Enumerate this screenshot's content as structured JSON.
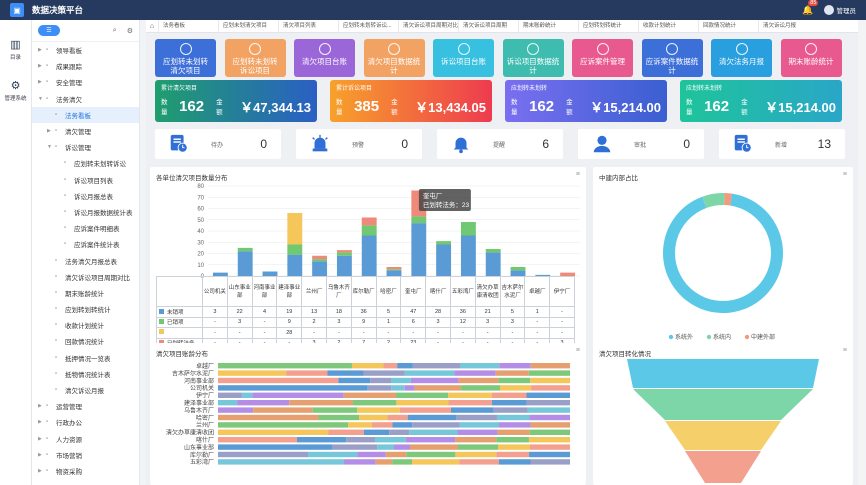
{
  "app": {
    "title": "数据决策平台",
    "notify_count": "85",
    "user": "管理员"
  },
  "iconbar": [
    {
      "label": "目录"
    },
    {
      "label": "管理系统"
    }
  ],
  "sidebar": {
    "items": [
      {
        "label": "领导看板",
        "level": 0,
        "exp": "▶"
      },
      {
        "label": "成果跟踪",
        "level": 0,
        "exp": "▶"
      },
      {
        "label": "安全管理",
        "level": 0,
        "exp": "▶"
      },
      {
        "label": "法务清欠",
        "level": 0,
        "exp": "▼"
      },
      {
        "label": "法务看板",
        "level": 1,
        "exp": "",
        "active": true
      },
      {
        "label": "清欠管理",
        "level": 1,
        "exp": "▶"
      },
      {
        "label": "诉讼管理",
        "level": 1,
        "exp": "▼"
      },
      {
        "label": "应划转未划转诉讼",
        "level": 2,
        "exp": ""
      },
      {
        "label": "诉讼项目列表",
        "level": 2,
        "exp": ""
      },
      {
        "label": "诉讼月报总表",
        "level": 2,
        "exp": ""
      },
      {
        "label": "诉讼月报数据统计表",
        "level": 2,
        "exp": ""
      },
      {
        "label": "应诉案件明细表",
        "level": 2,
        "exp": ""
      },
      {
        "label": "应诉案件统计表",
        "level": 2,
        "exp": ""
      },
      {
        "label": "法务清欠月报总表",
        "level": 1,
        "exp": ""
      },
      {
        "label": "清欠诉讼项目周期对比",
        "level": 1,
        "exp": ""
      },
      {
        "label": "期末账龄统计",
        "level": 1,
        "exp": ""
      },
      {
        "label": "应划转划转统计",
        "level": 1,
        "exp": ""
      },
      {
        "label": "收款计划统计",
        "level": 1,
        "exp": ""
      },
      {
        "label": "回款情况统计",
        "level": 1,
        "exp": ""
      },
      {
        "label": "抵押情况一览表",
        "level": 1,
        "exp": ""
      },
      {
        "label": "抵物情况统计表",
        "level": 1,
        "exp": ""
      },
      {
        "label": "清欠诉讼月报",
        "level": 1,
        "exp": ""
      },
      {
        "label": "运营管理",
        "level": 0,
        "exp": "▶"
      },
      {
        "label": "行政办公",
        "level": 0,
        "exp": "▶"
      },
      {
        "label": "人力资源",
        "level": 0,
        "exp": "▶"
      },
      {
        "label": "市场营销",
        "level": 0,
        "exp": "▶"
      },
      {
        "label": "物资采购",
        "level": 0,
        "exp": "▶"
      }
    ]
  },
  "tabs": [
    "法务看板",
    "应划未划清欠项目",
    "清欠项目列表",
    "应划转未划转诉讼...",
    "清欠诉讼项目周期对比",
    "清欠诉讼项目周期",
    "期末账龄统计",
    "应划转划转统计",
    "收款计划统计",
    "回款情况统计",
    "清欠诉讼月报"
  ],
  "tiles": [
    {
      "label": "应划转未划转\n清欠项目",
      "color": "#3d6fd8"
    },
    {
      "label": "应划转未划转\n诉讼项目",
      "color": "#f2a364"
    },
    {
      "label": "清欠项目台账",
      "color": "#9b67d8"
    },
    {
      "label": "清欠项目数据统\n计",
      "color": "#f2a364"
    },
    {
      "label": "诉讼项目台账",
      "color": "#37c0e0"
    },
    {
      "label": "诉讼项目数据统\n计",
      "color": "#3fbcb0"
    },
    {
      "label": "应诉案件管理",
      "color": "#e85a8f"
    },
    {
      "label": "应诉案件数据统\n计",
      "color": "#3d6fd8"
    },
    {
      "label": "清欠法务月报",
      "color": "#2a9fe0"
    },
    {
      "label": "期末账龄统计",
      "color": "#e85a8f"
    }
  ],
  "stats": [
    {
      "title": "累计清欠项目",
      "count_label": "数量",
      "count": "162",
      "amount_label": "金额",
      "amount": "￥47,344.13",
      "c1": "#1f9e6e",
      "c2": "#2a5fc4"
    },
    {
      "title": "累计诉讼项目",
      "count_label": "数量",
      "count": "385",
      "amount_label": "金额",
      "amount": "￥13,434.05",
      "c1": "#f7a12b",
      "c2": "#ee3b4f"
    },
    {
      "title": "应划转未划转",
      "count_label": "数量",
      "count": "162",
      "amount_label": "金额",
      "amount": "￥15,214.00",
      "c1": "#7a6ff0",
      "c2": "#3a5fd0"
    },
    {
      "title": "应划转未划转",
      "count_label": "数量",
      "count": "162",
      "amount_label": "金额",
      "amount": "￥15,214.00",
      "c1": "#1ec49a",
      "c2": "#2aa6c8"
    }
  ],
  "kpis": [
    {
      "label": "待办",
      "value": "0",
      "icon": "document-clock-icon"
    },
    {
      "label": "预警",
      "value": "0",
      "icon": "alarm-light-icon"
    },
    {
      "label": "提醒",
      "value": "6",
      "icon": "bell-icon"
    },
    {
      "label": "审批",
      "value": "0",
      "icon": "user-icon"
    },
    {
      "label": "新增",
      "value": "13",
      "icon": "document-clock-icon"
    }
  ],
  "panels": {
    "bar": "各单位清欠项目数量分布",
    "donut": "中建内部占比",
    "hbar": "清欠项目账龄分布",
    "funnel": "清欠项目转化情况"
  },
  "chart_data": [
    {
      "type": "bar",
      "title": "各单位清欠项目数量分布",
      "ylim": [
        0,
        80
      ],
      "yticks": [
        0,
        10,
        20,
        30,
        40,
        50,
        60,
        70,
        80
      ],
      "categories": [
        "公司机关",
        "山东事业部",
        "河南事业部",
        "建泽事业部",
        "兰州厂",
        "乌鲁木齐厂",
        "库尔勒厂",
        "哈密厂",
        "奎屯厂",
        "喀什厂",
        "五彩湾厂",
        "清欠办草康清收团",
        "吉木萨尔水泥厂",
        "卓越厂",
        "伊宁厂"
      ],
      "series": [
        {
          "name": "未销项",
          "color": "#5b9bd5",
          "values": [
            3,
            22,
            4,
            19,
            13,
            18,
            36,
            5,
            47,
            28,
            36,
            21,
            5,
            1,
            0
          ],
          "labels": [
            "3",
            "22",
            "4",
            "19",
            "13",
            "18",
            "36",
            "5",
            "47",
            "28",
            "36",
            "21",
            "5",
            "1",
            "-"
          ]
        },
        {
          "name": "已销项",
          "color": "#70c870",
          "values": [
            0,
            3,
            0,
            9,
            2,
            3,
            9,
            1,
            6,
            3,
            12,
            3,
            3,
            0,
            0
          ],
          "labels": [
            "-",
            "3",
            "-",
            "9",
            "2",
            "3",
            "9",
            "1",
            "6",
            "3",
            "12",
            "3",
            "3",
            "-",
            "-"
          ]
        },
        {
          "name": "",
          "color": "#f5c65a",
          "values": [
            0,
            0,
            0,
            28,
            0,
            0,
            0,
            0,
            0,
            0,
            0,
            0,
            0,
            0,
            0
          ],
          "labels": [
            "-",
            "-",
            "-",
            "28",
            "-",
            "-",
            "-",
            "-",
            "-",
            "-",
            "-",
            "-",
            "-",
            "-",
            "-"
          ]
        },
        {
          "name": "已划转法务",
          "color": "#ef8a7a",
          "values": [
            0,
            0,
            0,
            0,
            3,
            2,
            7,
            2,
            23,
            0,
            0,
            0,
            0,
            0,
            3
          ],
          "labels": [
            "-",
            "-",
            "-",
            "-",
            "3",
            "2",
            "7",
            "2",
            "23",
            "-",
            "-",
            "-",
            "-",
            "-",
            "3"
          ]
        }
      ],
      "tooltip": {
        "title": "奎屯厂",
        "text": "已划转法务：23"
      }
    },
    {
      "type": "pie",
      "title": "中建内部占比",
      "legend": [
        "系统外",
        "系统内",
        "中建外部"
      ],
      "colors": [
        "#5cc8e8",
        "#7dd6a8",
        "#f19a7e"
      ],
      "values": [
        92,
        6,
        2
      ]
    },
    {
      "type": "bar",
      "title": "清欠项目账龄分布",
      "categories": [
        "卓越厂",
        "吉木萨尔水泥厂",
        "河南事业部",
        "公司机关",
        "伊宁厂",
        "建泽事业部",
        "乌鲁木齐厂",
        "哈密厂",
        "兰州厂",
        "清欠办草康清收团",
        "喀什厂",
        "山东事业部",
        "库尔勒厂",
        "五彩湾厂"
      ]
    },
    {
      "type": "area",
      "title": "清欠项目转化情况",
      "colors": [
        "#5cc8e8",
        "#7dd6a8",
        "#f5d06a",
        "#f3a08f"
      ]
    }
  ]
}
